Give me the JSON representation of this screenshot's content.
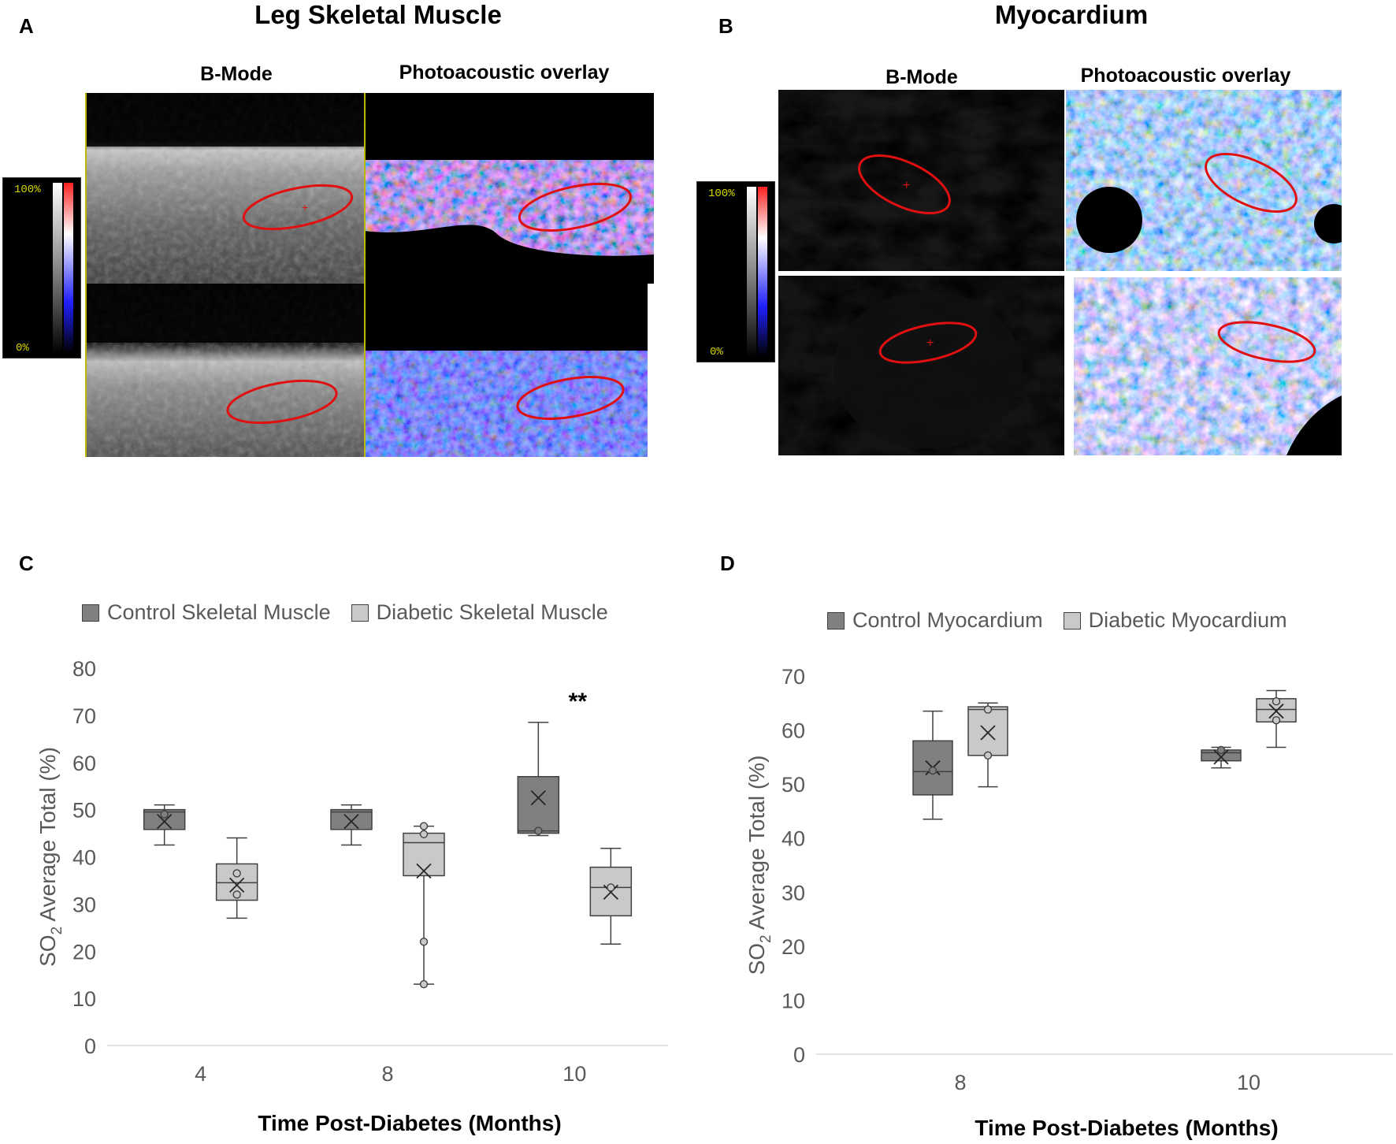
{
  "panels": {
    "A": {
      "letter": "A",
      "title": "Leg Skeletal Muscle",
      "col1": "B-Mode",
      "col2": "Photoacoustic overlay",
      "cbar_top": "100%",
      "cbar_bottom": "0%"
    },
    "B": {
      "letter": "B",
      "title": "Myocardium",
      "col1": "B-Mode",
      "col2": "Photoacoustic overlay",
      "cbar_top": "100%",
      "cbar_bottom": "0%"
    },
    "C": {
      "letter": "C",
      "legend": [
        "Control Skeletal Muscle",
        "Diabetic Skeletal Muscle"
      ],
      "ylabel_main": "SO",
      "ylabel_sub": "2",
      "ylabel_rest": " Average Total (%)",
      "xlabel": "Time Post-Diabetes (Months)",
      "annotation": "**"
    },
    "D": {
      "letter": "D",
      "legend": [
        "Control Myocardium",
        "Diabetic Myocardium"
      ],
      "ylabel_main": "SO",
      "ylabel_sub": "2",
      "ylabel_rest": " Average Total (%)",
      "xlabel": "Time Post-Diabetes (Months)"
    }
  },
  "colors": {
    "control": "#808080",
    "diabetic": "#c9c9c9",
    "axis_text": "#595959",
    "roi": "#e01010"
  },
  "chart_data": [
    {
      "type": "box",
      "panel": "C",
      "categories": [
        "4",
        "8",
        "10"
      ],
      "ylim": [
        0,
        80
      ],
      "yticks": [
        0,
        10,
        20,
        30,
        40,
        50,
        60,
        70,
        80
      ],
      "grid": false,
      "legend_position": "top",
      "series": [
        {
          "name": "Control Skeletal Muscle",
          "boxes": [
            {
              "min": 42.5,
              "q1": 45.8,
              "median": 49.5,
              "q3": 50.0,
              "max": 51.0,
              "mean": 47.5,
              "points": [
                49.0
              ]
            },
            {
              "min": 42.5,
              "q1": 45.8,
              "median": 49.5,
              "q3": 50.0,
              "max": 51.0,
              "mean": 47.5,
              "points": []
            },
            {
              "min": 44.5,
              "q1": 45.0,
              "median": 45.5,
              "q3": 57.0,
              "max": 68.5,
              "mean": 52.5,
              "points": [
                45.5
              ]
            }
          ]
        },
        {
          "name": "Diabetic Skeletal Muscle",
          "boxes": [
            {
              "min": 27.0,
              "q1": 30.8,
              "median": 34.5,
              "q3": 38.5,
              "max": 44.0,
              "mean": 34.0,
              "points": [
                36.5,
                32.0
              ]
            },
            {
              "min": 13.0,
              "q1": 36.0,
              "median": 43.0,
              "q3": 45.0,
              "max": 46.5,
              "mean": 37.0,
              "points": [
                46.5,
                44.8,
                22.0,
                13.0
              ]
            },
            {
              "min": 21.5,
              "q1": 27.5,
              "median": 33.5,
              "q3": 37.8,
              "max": 41.8,
              "mean": 32.5,
              "points": [
                33.5
              ]
            }
          ]
        }
      ]
    },
    {
      "type": "box",
      "panel": "D",
      "categories": [
        "8",
        "10"
      ],
      "ylim": [
        0,
        70
      ],
      "yticks": [
        0,
        10,
        20,
        30,
        40,
        50,
        60,
        70
      ],
      "grid": false,
      "legend_position": "top",
      "series": [
        {
          "name": "Control Myocardium",
          "boxes": [
            {
              "min": 43.5,
              "q1": 48.0,
              "median": 52.3,
              "q3": 58.0,
              "max": 63.5,
              "mean": 53.0,
              "points": [
                52.5
              ]
            },
            {
              "min": 53.0,
              "q1": 54.3,
              "median": 55.8,
              "q3": 56.3,
              "max": 56.8,
              "mean": 55.0,
              "points": [
                56.3
              ]
            }
          ]
        },
        {
          "name": "Diabetic Myocardium",
          "boxes": [
            {
              "min": 49.5,
              "q1": 55.3,
              "median": 63.8,
              "q3": 64.3,
              "max": 65.0,
              "mean": 59.5,
              "points": [
                63.8,
                55.3
              ]
            },
            {
              "min": 56.8,
              "q1": 61.5,
              "median": 63.8,
              "q3": 65.8,
              "max": 67.3,
              "mean": 63.5,
              "points": [
                65.3,
                61.8
              ]
            }
          ]
        }
      ]
    }
  ]
}
